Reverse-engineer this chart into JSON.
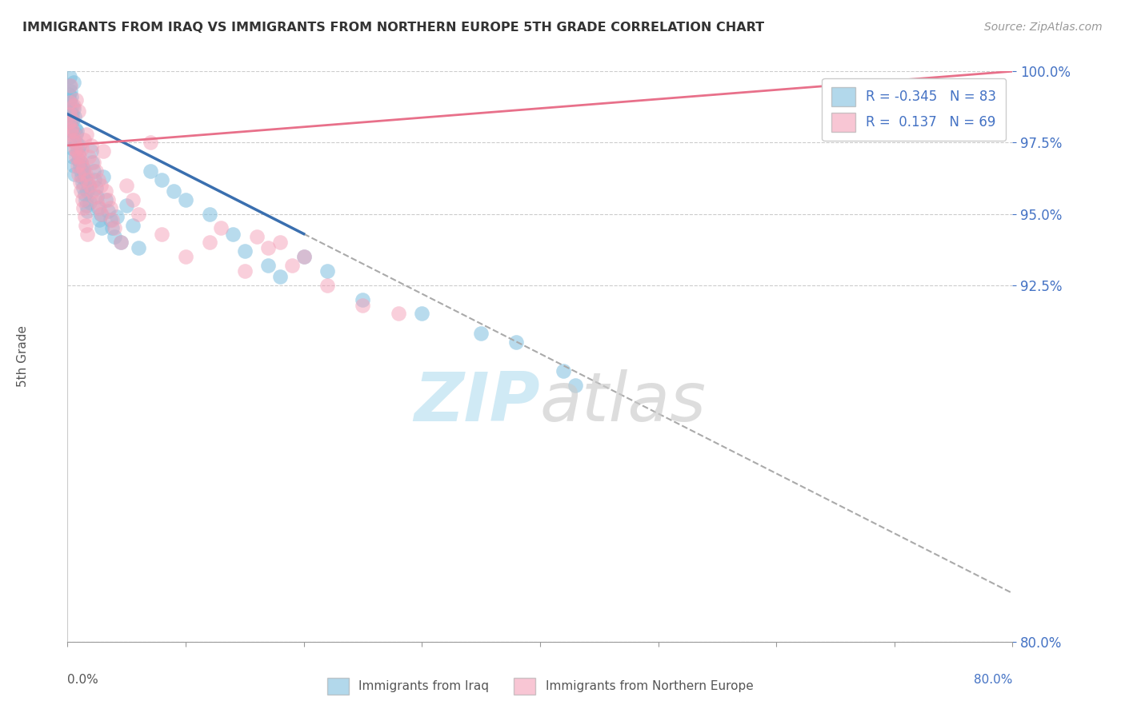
{
  "title": "IMMIGRANTS FROM IRAQ VS IMMIGRANTS FROM NORTHERN EUROPE 5TH GRADE CORRELATION CHART",
  "source": "Source: ZipAtlas.com",
  "ylabel": "5th Grade",
  "R_iraq": -0.345,
  "N_iraq": 83,
  "R_northern": 0.137,
  "N_northern": 69,
  "iraq_color": "#7fbfdf",
  "northern_color": "#f4a0b8",
  "iraq_line_color": "#3a6faf",
  "northern_line_color": "#e8708a",
  "dash_color": "#aaaaaa",
  "ytick_color": "#4472c4",
  "grid_color": "#cccccc",
  "title_color": "#333333",
  "source_color": "#999999",
  "watermark_zip_color": "#cce8f5",
  "watermark_atlas_color": "#cccccc",
  "xlim": [
    0,
    80
  ],
  "ylim": [
    80,
    100
  ],
  "yticks": [
    80.0,
    92.5,
    95.0,
    97.5,
    100.0
  ],
  "xtick_labels": [
    "0.0%",
    "80.0%"
  ],
  "iraq_trend_x0": 0.0,
  "iraq_trend_y0": 98.5,
  "iraq_trend_x1": 20.0,
  "iraq_trend_y1": 94.3,
  "iraq_dash_x1": 80.0,
  "iraq_dash_y1": 80.0,
  "northern_trend_x0": 0.0,
  "northern_trend_y0": 97.4,
  "northern_trend_x1": 80.0,
  "northern_trend_y1": 100.0,
  "iraq_pts_x": [
    0.1,
    0.15,
    0.2,
    0.25,
    0.3,
    0.35,
    0.4,
    0.45,
    0.5,
    0.55,
    0.6,
    0.65,
    0.7,
    0.75,
    0.8,
    0.85,
    0.9,
    0.95,
    1.0,
    1.05,
    1.1,
    1.15,
    1.2,
    1.25,
    1.3,
    1.35,
    1.4,
    1.45,
    1.5,
    1.55,
    1.6,
    1.65,
    1.7,
    1.8,
    1.9,
    2.0,
    2.1,
    2.2,
    2.3,
    2.4,
    2.5,
    2.6,
    2.7,
    2.8,
    2.9,
    3.0,
    3.2,
    3.4,
    3.6,
    3.8,
    4.0,
    4.2,
    4.5,
    5.0,
    5.5,
    6.0,
    7.0,
    8.0,
    9.0,
    10.0,
    12.0,
    14.0,
    15.0,
    17.0,
    18.0,
    20.0,
    22.0,
    25.0,
    30.0,
    35.0,
    38.0,
    42.0,
    43.0,
    0.12,
    0.18,
    0.22,
    0.28,
    0.32,
    0.38,
    0.42,
    0.48,
    0.52,
    0.58
  ],
  "iraq_pts_y": [
    99.2,
    99.5,
    99.8,
    99.3,
    99.1,
    98.8,
    98.5,
    98.3,
    99.6,
    98.7,
    98.4,
    98.0,
    97.8,
    97.5,
    97.9,
    97.3,
    97.1,
    96.9,
    97.4,
    96.7,
    96.5,
    96.8,
    96.3,
    96.1,
    96.6,
    95.9,
    96.4,
    95.7,
    95.5,
    96.2,
    95.3,
    95.8,
    95.1,
    96.0,
    95.4,
    97.2,
    96.8,
    96.5,
    96.2,
    95.9,
    95.6,
    95.2,
    94.8,
    95.0,
    94.5,
    96.3,
    95.5,
    95.1,
    94.8,
    94.5,
    94.2,
    94.9,
    94.0,
    95.3,
    94.6,
    93.8,
    96.5,
    96.2,
    95.8,
    95.5,
    95.0,
    94.3,
    93.7,
    93.2,
    92.8,
    93.5,
    93.0,
    92.0,
    91.5,
    90.8,
    90.5,
    89.5,
    89.0,
    98.5,
    99.0,
    98.6,
    98.2,
    97.9,
    97.6,
    97.3,
    97.0,
    96.7,
    96.4
  ],
  "north_pts_x": [
    0.1,
    0.2,
    0.3,
    0.4,
    0.5,
    0.6,
    0.7,
    0.8,
    0.9,
    1.0,
    1.1,
    1.2,
    1.3,
    1.4,
    1.5,
    1.6,
    1.7,
    1.8,
    1.9,
    2.0,
    2.1,
    2.2,
    2.3,
    2.4,
    2.5,
    2.6,
    2.7,
    2.8,
    2.9,
    3.0,
    3.2,
    3.4,
    3.6,
    3.8,
    4.0,
    4.5,
    5.0,
    5.5,
    6.0,
    7.0,
    8.0,
    10.0,
    12.0,
    13.0,
    15.0,
    16.0,
    17.0,
    18.0,
    19.0,
    20.0,
    22.0,
    25.0,
    28.0,
    0.15,
    0.25,
    0.35,
    0.45,
    0.55,
    0.65,
    0.75,
    0.85,
    0.95,
    1.05,
    1.15,
    1.25,
    1.35,
    1.45,
    1.55,
    1.65
  ],
  "north_pts_y": [
    98.2,
    98.5,
    98.0,
    97.8,
    98.8,
    97.5,
    99.0,
    97.2,
    98.6,
    97.0,
    96.8,
    97.3,
    96.6,
    97.6,
    96.4,
    97.8,
    96.2,
    97.0,
    96.0,
    97.4,
    95.8,
    96.8,
    95.6,
    96.5,
    95.4,
    96.2,
    95.2,
    96.0,
    95.0,
    97.2,
    95.8,
    95.5,
    95.2,
    94.8,
    94.5,
    94.0,
    96.0,
    95.5,
    95.0,
    97.5,
    94.3,
    93.5,
    94.0,
    94.5,
    93.0,
    94.2,
    93.8,
    94.0,
    93.2,
    93.5,
    92.5,
    91.8,
    91.5,
    98.9,
    99.5,
    98.3,
    97.9,
    97.6,
    97.3,
    97.0,
    96.7,
    96.4,
    96.1,
    95.8,
    95.5,
    95.2,
    94.9,
    94.6,
    94.3
  ]
}
